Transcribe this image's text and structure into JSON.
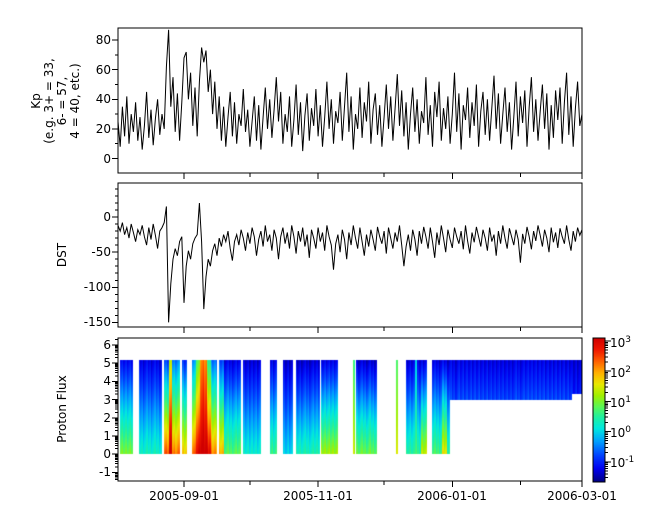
{
  "x_axis": {
    "start_date": "2005-08-02",
    "end_date": "2006-03-01",
    "span_days": 211,
    "tick_labels": [
      "2005-09-01",
      "2005-11-01",
      "2006-01-01",
      "2006-03-01"
    ],
    "tick_days": [
      30,
      91,
      152,
      211
    ],
    "minor_tick_days": [
      60,
      121,
      183
    ]
  },
  "colors": {
    "line": "#000000",
    "axis": "#000000",
    "background": "#ffffff"
  },
  "chart_data": [
    {
      "type": "line",
      "name": "kp-index",
      "ylabel_lines": [
        "Kp",
        "(e.g. 3+ = 33,",
        "6- = 57,",
        "4 = 40, etc.)"
      ],
      "ylim": [
        -9.8,
        88.2
      ],
      "yticks": [
        0,
        20,
        40,
        60,
        80
      ],
      "y_minor_step": 10,
      "x_unit": "days since 2005-08-02",
      "values": [
        25,
        8,
        35,
        15,
        42,
        10,
        30,
        18,
        38,
        12,
        28,
        6,
        22,
        45,
        14,
        33,
        9,
        27,
        40,
        16,
        30,
        20,
        62,
        87,
        35,
        55,
        18,
        44,
        12,
        38,
        68,
        72,
        40,
        58,
        22,
        48,
        15,
        52,
        75,
        65,
        73,
        45,
        60,
        30,
        52,
        20,
        42,
        12,
        35,
        8,
        28,
        45,
        15,
        38,
        10,
        30,
        22,
        47,
        18,
        33,
        8,
        25,
        42,
        12,
        36,
        6,
        28,
        48,
        20,
        40,
        14,
        33,
        55,
        25,
        45,
        10,
        30,
        18,
        42,
        8,
        26,
        50,
        16,
        38,
        5,
        29,
        44,
        12,
        34,
        22,
        47,
        15,
        36,
        8,
        28,
        52,
        20,
        40,
        10,
        32,
        24,
        45,
        12,
        35,
        58,
        18,
        42,
        6,
        30,
        20,
        48,
        14,
        38,
        25,
        52,
        10,
        33,
        44,
        16,
        36,
        8,
        28,
        50,
        20,
        42,
        12,
        34,
        57,
        22,
        46,
        15,
        38,
        6,
        30,
        48,
        18,
        40,
        10,
        32,
        24,
        55,
        16,
        36,
        8,
        45,
        28,
        52,
        12,
        34,
        20,
        42,
        10,
        30,
        58,
        18,
        44,
        6,
        36,
        26,
        48,
        14,
        38,
        22,
        50,
        8,
        32,
        45,
        16,
        40,
        12,
        34,
        56,
        20,
        44,
        10,
        30,
        48,
        18,
        38,
        6,
        28,
        52,
        15,
        42,
        24,
        46,
        8,
        35,
        55,
        18,
        40,
        12,
        32,
        50,
        20,
        44,
        6,
        36,
        14,
        46,
        26,
        48,
        10,
        38,
        58,
        16,
        42,
        8,
        34,
        52,
        22,
        30
      ]
    },
    {
      "type": "line",
      "name": "dst-index",
      "ylabel": "DST",
      "ylim": [
        -156.5,
        48.4
      ],
      "yticks": [
        0,
        -50,
        -100,
        -150
      ],
      "y_minor_step": 10,
      "x_unit": "days since 2005-08-02",
      "values": [
        -12,
        -20,
        -8,
        -25,
        -15,
        -30,
        -10,
        -22,
        -35,
        -18,
        -25,
        -12,
        -28,
        -40,
        -15,
        -32,
        -10,
        -26,
        -45,
        -20,
        -15,
        -8,
        15,
        -150,
        -95,
        -60,
        -45,
        -55,
        -35,
        -28,
        -122,
        -70,
        -48,
        -60,
        -38,
        -30,
        -25,
        20,
        -35,
        -131,
        -85,
        -60,
        -70,
        -48,
        -38,
        -55,
        -30,
        -42,
        -25,
        -35,
        -20,
        -45,
        -62,
        -35,
        -25,
        -40,
        -18,
        -30,
        -48,
        -22,
        -38,
        -15,
        -28,
        -55,
        -32,
        -20,
        -42,
        -12,
        -35,
        -25,
        -48,
        -18,
        -30,
        -60,
        -28,
        -15,
        -38,
        -22,
        -45,
        -12,
        -28,
        -52,
        -20,
        -35,
        -15,
        -42,
        -25,
        -58,
        -18,
        -30,
        -45,
        -15,
        -35,
        -22,
        -48,
        -12,
        -28,
        -40,
        -75,
        -38,
        -25,
        -50,
        -18,
        -32,
        -60,
        -22,
        -40,
        -12,
        -30,
        -45,
        -15,
        -35,
        -55,
        -25,
        -42,
        -18,
        -32,
        -48,
        -14,
        -28,
        -38,
        -20,
        -52,
        -15,
        -30,
        -45,
        -22,
        -35,
        -12,
        -40,
        -70,
        -42,
        -25,
        -48,
        -18,
        -32,
        -55,
        -20,
        -38,
        -14,
        -28,
        -45,
        -15,
        -35,
        -58,
        -22,
        -40,
        -12,
        -30,
        -50,
        -18,
        -32,
        -44,
        -15,
        -28,
        -38,
        -20,
        -46,
        -12,
        -34,
        -52,
        -22,
        -36,
        -14,
        -28,
        -42,
        -18,
        -30,
        -48,
        -15,
        -35,
        -25,
        -55,
        -20,
        -38,
        -12,
        -30,
        -45,
        -16,
        -28,
        -40,
        -18,
        -32,
        -65,
        -24,
        -38,
        -14,
        -28,
        -46,
        -20,
        -34,
        -12,
        -26,
        -42,
        -18,
        -30,
        -50,
        -15,
        -36,
        -22,
        -44,
        -16,
        -28,
        -38,
        -12,
        -32,
        -48,
        -20,
        -35,
        -15,
        -26,
        -18
      ]
    },
    {
      "type": "heatmap",
      "name": "proton-flux",
      "ylabel": "Proton Flux",
      "ylim": [
        -1.47,
        6.38
      ],
      "yticks": [
        6,
        5,
        4,
        3,
        2,
        1,
        0,
        -1
      ],
      "log_minor_ticks": true,
      "data_y_range": [
        0,
        5.15
      ],
      "colorbar": {
        "base": "10",
        "exponents": [
          3,
          2,
          1,
          0,
          -1
        ],
        "tick_values": [
          3,
          2,
          1,
          0,
          -1
        ],
        "zmin": -1.67,
        "zmax": 3.1,
        "colormap": "jet",
        "stops": [
          [
            0,
            "#000085"
          ],
          [
            0.09,
            "#0000f0"
          ],
          [
            0.18,
            "#0040ff"
          ],
          [
            0.28,
            "#00a0ff"
          ],
          [
            0.37,
            "#00e8e0"
          ],
          [
            0.45,
            "#20f0a0"
          ],
          [
            0.52,
            "#58f858"
          ],
          [
            0.6,
            "#a0f000"
          ],
          [
            0.68,
            "#e8e800"
          ],
          [
            0.76,
            "#ffb000"
          ],
          [
            0.84,
            "#ff6000"
          ],
          [
            0.92,
            "#f01800"
          ],
          [
            1,
            "#d00000"
          ]
        ]
      },
      "columns": [
        {
          "d0": 1,
          "d1": 7,
          "b": 1.0,
          "t": -1.2
        },
        {
          "d0": 9.5,
          "d1": 20,
          "b": 0.3,
          "t": -1.3
        },
        {
          "d0": 21,
          "d1": 23,
          "b": 2.5,
          "t": -0.8
        },
        {
          "d0": 23,
          "d1": 24.5,
          "b": 3.2,
          "t": 1.2
        },
        {
          "d0": 24.5,
          "d1": 28,
          "b": 2.3,
          "t": -0.5
        },
        {
          "d0": 29,
          "d1": 31.5,
          "b": 1.8,
          "t": -1.0
        },
        {
          "d0": 33.5,
          "d1": 35.5,
          "b": 2.4,
          "t": -0.4
        },
        {
          "d0": 35.5,
          "d1": 37.5,
          "b": 3.0,
          "t": 0.8
        },
        {
          "d0": 37.5,
          "d1": 40.5,
          "b": 3.2,
          "t": 2.2
        },
        {
          "d0": 40.5,
          "d1": 42.5,
          "b": 3.0,
          "t": 0.5
        },
        {
          "d0": 42.5,
          "d1": 45,
          "b": 2.2,
          "t": -0.6
        },
        {
          "d0": 46,
          "d1": 48,
          "b": 2.0,
          "t": -0.8
        },
        {
          "d0": 48,
          "d1": 56,
          "b": 0.8,
          "t": -1.3
        },
        {
          "d0": 57,
          "d1": 65,
          "b": 0.2,
          "t": -1.4
        },
        {
          "d0": 69,
          "d1": 72.5,
          "b": 0.6,
          "t": -1.3
        },
        {
          "d0": 75,
          "d1": 79.5,
          "b": 0.0,
          "t": -1.4
        },
        {
          "d0": 81,
          "d1": 92,
          "b": 0.4,
          "t": -1.4
        },
        {
          "d0": 92.5,
          "d1": 100,
          "b": 1.2,
          "t": -1.3
        },
        {
          "d0": 106.8,
          "d1": 107.6,
          "b": 1.4,
          "t": 0.6
        },
        {
          "d0": 108.2,
          "d1": 118,
          "b": 0.9,
          "t": -1.4
        },
        {
          "d0": 126.5,
          "d1": 127.4,
          "b": 1.5,
          "t": 0.7
        },
        {
          "d0": 131,
          "d1": 135,
          "b": 0.5,
          "t": -1.35
        },
        {
          "d0": 135,
          "d1": 135.8,
          "b": 0.8,
          "t": 0.0
        },
        {
          "d0": 135.8,
          "d1": 138,
          "b": 0.5,
          "t": -1.35
        },
        {
          "d0": 138,
          "d1": 140.5,
          "b": 1.4,
          "t": -1.3
        },
        {
          "d0": 143,
          "d1": 147.5,
          "b": 0.7,
          "t": -1.35
        },
        {
          "d0": 147.5,
          "d1": 149.5,
          "b": 1.6,
          "t": -1.3
        },
        {
          "d0": 149.5,
          "d1": 151,
          "b": 0.6,
          "t": -1.35
        }
      ],
      "bands": [
        {
          "d0": 151,
          "d1": 206.5,
          "y0": 3,
          "y1": 5.15,
          "b": -0.8,
          "t": -1.3
        },
        {
          "d0": 206.5,
          "d1": 211,
          "y0": 3.3,
          "y1": 5.15,
          "b": -1.05,
          "t": -1.35
        }
      ]
    }
  ]
}
